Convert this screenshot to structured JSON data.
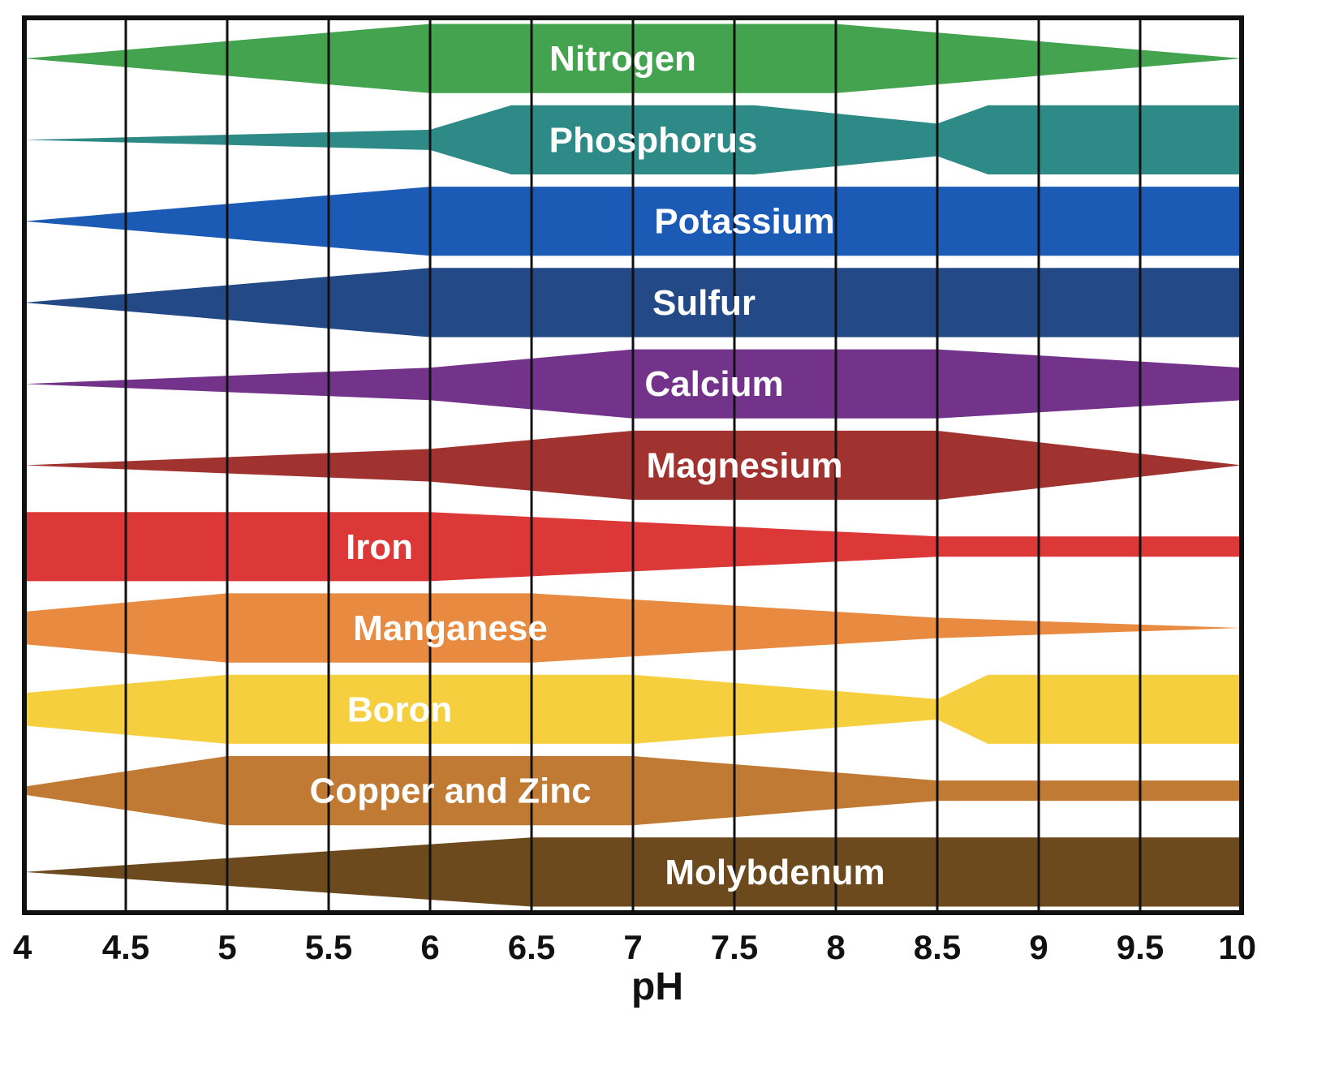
{
  "chart_data": {
    "type": "area",
    "xlabel": "pH",
    "xlim": [
      4,
      10
    ],
    "x_ticks": [
      "4",
      "4.5",
      "5",
      "5.5",
      "6",
      "6.5",
      "7",
      "7.5",
      "8",
      "8.5",
      "9",
      "9.5",
      "10"
    ],
    "grid": true,
    "series": [
      {
        "name": "Nitrogen",
        "color": "#44a34f",
        "label_x": 6.95,
        "points": [
          [
            4.0,
            0.0
          ],
          [
            6.0,
            0.85
          ],
          [
            8.0,
            0.85
          ],
          [
            10.0,
            0.0
          ]
        ]
      },
      {
        "name": "Phosphorus",
        "color": "#2e8a86",
        "label_x": 7.1,
        "points": [
          [
            4.0,
            0.0
          ],
          [
            6.0,
            0.25
          ],
          [
            6.4,
            0.85
          ],
          [
            7.6,
            0.85
          ],
          [
            8.5,
            0.4
          ],
          [
            8.75,
            0.85
          ],
          [
            10.0,
            0.85
          ]
        ]
      },
      {
        "name": "Potassium",
        "color": "#1c5bb5",
        "label_x": 7.55,
        "points": [
          [
            4.0,
            0.0
          ],
          [
            6.0,
            0.85
          ],
          [
            10.0,
            0.85
          ]
        ]
      },
      {
        "name": "Sulfur",
        "color": "#234a86",
        "label_x": 7.35,
        "points": [
          [
            4.0,
            0.0
          ],
          [
            6.0,
            0.85
          ],
          [
            10.0,
            0.85
          ]
        ]
      },
      {
        "name": "Calcium",
        "color": "#74338a",
        "label_x": 7.4,
        "points": [
          [
            4.0,
            0.0
          ],
          [
            6.0,
            0.4
          ],
          [
            7.0,
            0.85
          ],
          [
            8.5,
            0.85
          ],
          [
            10.0,
            0.4
          ]
        ]
      },
      {
        "name": "Magnesium",
        "color": "#a0332f",
        "label_x": 7.55,
        "points": [
          [
            4.0,
            0.0
          ],
          [
            6.0,
            0.4
          ],
          [
            7.0,
            0.85
          ],
          [
            8.5,
            0.85
          ],
          [
            10.0,
            0.0
          ]
        ]
      },
      {
        "name": "Iron",
        "color": "#dc3838",
        "label_x": 5.75,
        "points": [
          [
            4.0,
            0.85
          ],
          [
            6.0,
            0.85
          ],
          [
            8.5,
            0.25
          ],
          [
            10.0,
            0.25
          ]
        ]
      },
      {
        "name": "Manganese",
        "color": "#e88a40",
        "label_x": 6.1,
        "points": [
          [
            4.0,
            0.4
          ],
          [
            5.0,
            0.85
          ],
          [
            6.5,
            0.85
          ],
          [
            8.5,
            0.25
          ],
          [
            10.0,
            0.0
          ]
        ]
      },
      {
        "name": "Boron",
        "color": "#f6cf3e",
        "label_x": 5.85,
        "points": [
          [
            4.0,
            0.4
          ],
          [
            5.0,
            0.85
          ],
          [
            7.0,
            0.85
          ],
          [
            8.5,
            0.25
          ],
          [
            8.75,
            0.85
          ],
          [
            10.0,
            0.85
          ]
        ]
      },
      {
        "name": "Copper and Zinc",
        "color": "#c07a34",
        "label_x": 6.1,
        "points": [
          [
            4.0,
            0.1
          ],
          [
            5.0,
            0.85
          ],
          [
            7.0,
            0.85
          ],
          [
            8.5,
            0.25
          ],
          [
            10.0,
            0.25
          ]
        ]
      },
      {
        "name": "Molybdenum",
        "color": "#6d4a1e",
        "label_x": 7.7,
        "points": [
          [
            4.0,
            0.0
          ],
          [
            6.5,
            0.85
          ],
          [
            10.0,
            0.85
          ]
        ]
      }
    ]
  }
}
